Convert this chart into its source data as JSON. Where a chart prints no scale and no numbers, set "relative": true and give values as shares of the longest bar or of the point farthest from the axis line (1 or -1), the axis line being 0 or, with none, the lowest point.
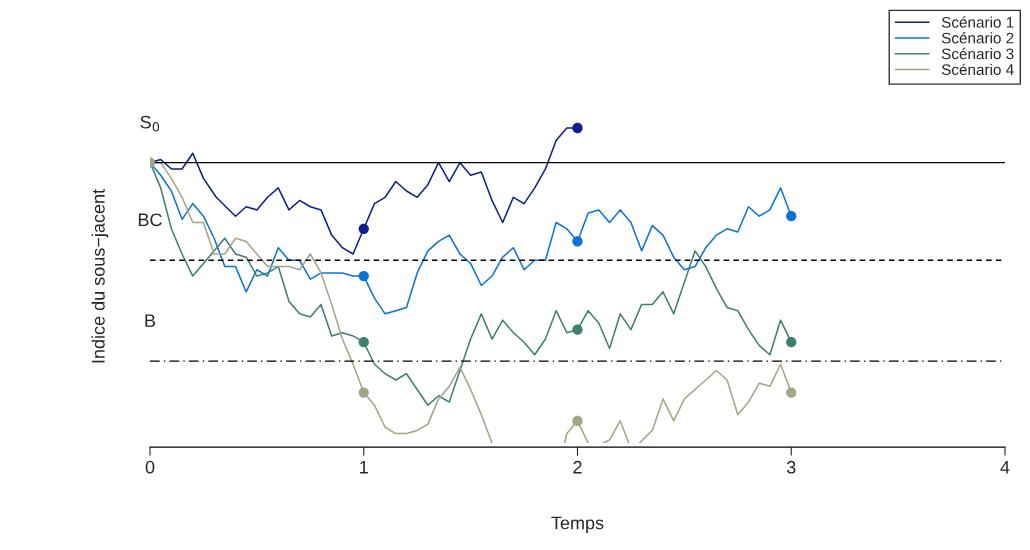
{
  "chart_data": {
    "type": "line",
    "relative": true,
    "xlabel": "Temps",
    "ylabel": "Indice du sous−jacent",
    "xlim": [
      0,
      4
    ],
    "xticks": [
      0,
      1,
      2,
      3,
      4
    ],
    "tick_labels": "x",
    "legend": "top right",
    "line_style": "solid",
    "series": [
      {
        "name": "Scénario 1",
        "color": "#0d1f8c",
        "x": [
          0,
          0.05,
          0.1,
          0.15,
          0.2,
          0.25,
          0.31,
          0.4,
          0.45,
          0.5,
          0.55,
          0.6,
          0.65,
          0.7,
          0.75,
          0.8,
          0.85,
          0.9,
          0.95,
          1.0,
          1.05,
          1.1,
          1.15,
          1.2,
          1.25,
          1.3,
          1.35,
          1.4,
          1.45,
          1.5,
          1.55,
          1.6,
          1.65,
          1.7,
          1.75,
          1.8,
          1.85,
          1.9,
          1.95,
          2.0
        ],
        "values": [
          0.89,
          0.9,
          0.87,
          0.87,
          0.92,
          0.84,
          0.78,
          0.72,
          0.75,
          0.74,
          0.78,
          0.81,
          0.74,
          0.77,
          0.75,
          0.74,
          0.66,
          0.62,
          0.6,
          0.68,
          0.76,
          0.78,
          0.83,
          0.8,
          0.78,
          0.82,
          0.89,
          0.83,
          0.89,
          0.85,
          0.86,
          0.77,
          0.7,
          0.78,
          0.76,
          0.81,
          0.87,
          0.96,
          1.0,
          1.0
        ]
      },
      {
        "name": "Scénario 2",
        "color": "#0a74d6",
        "x": [
          0,
          0.05,
          0.1,
          0.15,
          0.2,
          0.25,
          0.3,
          0.35,
          0.4,
          0.45,
          0.5,
          0.55,
          0.6,
          0.65,
          0.7,
          0.75,
          0.8,
          0.9,
          0.95,
          1.0,
          1.05,
          1.1,
          1.15,
          1.2,
          1.25,
          1.3,
          1.35,
          1.4,
          1.45,
          1.5,
          1.55,
          1.6,
          1.65,
          1.7,
          1.75,
          1.8,
          1.85,
          1.9,
          1.95,
          2.0,
          2.05,
          2.1,
          2.15,
          2.2,
          2.25,
          2.3,
          2.35,
          2.4,
          2.45,
          2.5,
          2.55,
          2.6,
          2.65,
          2.7,
          2.75,
          2.8,
          2.85,
          2.9,
          2.95,
          3.0
        ],
        "values": [
          0.89,
          0.85,
          0.8,
          0.71,
          0.76,
          0.72,
          0.65,
          0.56,
          0.56,
          0.48,
          0.55,
          0.53,
          0.62,
          0.58,
          0.58,
          0.52,
          0.54,
          0.54,
          0.53,
          0.53,
          0.46,
          0.41,
          0.42,
          0.43,
          0.54,
          0.61,
          0.64,
          0.66,
          0.6,
          0.57,
          0.5,
          0.53,
          0.59,
          0.62,
          0.55,
          0.58,
          0.58,
          0.7,
          0.68,
          0.64,
          0.73,
          0.74,
          0.7,
          0.74,
          0.7,
          0.61,
          0.69,
          0.66,
          0.59,
          0.55,
          0.56,
          0.62,
          0.66,
          0.68,
          0.67,
          0.75,
          0.72,
          0.74,
          0.81,
          0.72
        ]
      },
      {
        "name": "Scénario 3",
        "color": "#3c8070",
        "x": [
          0,
          0.05,
          0.1,
          0.15,
          0.2,
          0.25,
          0.3,
          0.35,
          0.4,
          0.45,
          0.5,
          0.55,
          0.6,
          0.65,
          0.7,
          0.75,
          0.8,
          0.85,
          0.9,
          0.95,
          1.0,
          1.05,
          1.1,
          1.15,
          1.2,
          1.25,
          1.3,
          1.35,
          1.4,
          1.45,
          1.5,
          1.55,
          1.6,
          1.65,
          1.7,
          1.75,
          1.8,
          1.85,
          1.9,
          1.95,
          2.0,
          2.05,
          2.1,
          2.15,
          2.2,
          2.25,
          2.3,
          2.35,
          2.4,
          2.45,
          2.5,
          2.55,
          2.6,
          2.65,
          2.7,
          2.75,
          2.8,
          2.85,
          2.9,
          2.95,
          3.0
        ],
        "values": [
          0.89,
          0.81,
          0.68,
          0.6,
          0.53,
          0.57,
          0.61,
          0.65,
          0.6,
          0.59,
          0.53,
          0.54,
          0.56,
          0.45,
          0.41,
          0.4,
          0.44,
          0.34,
          0.35,
          0.34,
          0.32,
          0.25,
          0.22,
          0.2,
          0.22,
          0.17,
          0.12,
          0.15,
          0.13,
          0.23,
          0.33,
          0.41,
          0.33,
          0.39,
          0.35,
          0.32,
          0.28,
          0.33,
          0.42,
          0.35,
          0.36,
          0.42,
          0.38,
          0.3,
          0.41,
          0.36,
          0.44,
          0.44,
          0.48,
          0.41,
          0.51,
          0.61,
          0.56,
          0.49,
          0.43,
          0.42,
          0.36,
          0.31,
          0.28,
          0.39,
          0.32
        ]
      },
      {
        "name": "Scénario 4",
        "color": "#a3a584",
        "x": [
          0,
          0.05,
          0.1,
          0.15,
          0.2,
          0.25,
          0.3,
          0.35,
          0.4,
          0.45,
          0.5,
          0.55,
          0.6,
          0.65,
          0.7,
          0.75,
          0.8,
          0.85,
          0.9,
          0.95,
          1.0,
          1.05,
          1.1,
          1.15,
          1.2,
          1.25,
          1.3,
          1.35,
          1.4,
          1.45,
          1.5,
          1.55,
          1.6,
          1.75,
          1.94,
          1.95,
          2.0,
          2.05,
          2.08,
          2.12,
          2.15,
          2.2,
          2.24,
          2.26,
          2.29,
          2.35,
          2.4,
          2.45,
          2.5,
          2.55,
          2.6,
          2.65,
          2.7,
          2.75,
          2.8,
          2.85,
          2.9,
          2.95,
          3.0
        ],
        "values": [
          0.89,
          0.89,
          0.84,
          0.78,
          0.7,
          0.7,
          0.6,
          0.6,
          0.65,
          0.64,
          0.6,
          0.56,
          0.56,
          0.56,
          0.55,
          0.6,
          0.54,
          0.44,
          0.33,
          0.25,
          0.16,
          0.12,
          0.05,
          0.03,
          0.03,
          0.04,
          0.06,
          0.14,
          0.18,
          0.24,
          0.17,
          0.09,
          0,
          null,
          0,
          0.03,
          0.07,
          0,
          null,
          0,
          0.01,
          0.07,
          0,
          null,
          0,
          0.04,
          0.14,
          0.07,
          0.14,
          0.17,
          0.2,
          0.23,
          0.2,
          0.09,
          0.13,
          0.19,
          0.18,
          0.25,
          0.16
        ]
      },
      {
        "type": "scatter",
        "marker": "circle",
        "color": "#0d1f8c",
        "x": [
          1,
          2
        ],
        "values": [
          0.68,
          1.0
        ]
      },
      {
        "type": "scatter",
        "marker": "circle",
        "color": "#0a74d6",
        "x": [
          1,
          2,
          3
        ],
        "values": [
          0.53,
          0.64,
          0.72
        ]
      },
      {
        "type": "scatter",
        "marker": "circle",
        "color": "#3c8070",
        "x": [
          1,
          2,
          3
        ],
        "values": [
          0.32,
          0.36,
          0.32
        ]
      },
      {
        "type": "scatter",
        "marker": "circle",
        "color": "#a3a584",
        "x": [
          0,
          1,
          2,
          3
        ],
        "values": [
          0.89,
          0.16,
          0.07,
          0.16
        ]
      }
    ],
    "ref_lines": [
      {
        "axis": "y",
        "value": 0.89,
        "label": "S$_{0}$",
        "color": "#000000",
        "line_style": "solid"
      },
      {
        "axis": "y",
        "value": 0.58,
        "label": "BC",
        "color": "#000000",
        "line_style": "dashed"
      },
      {
        "axis": "y",
        "value": 0.26,
        "label": "B",
        "color": "#000000",
        "line_style": "dashdot"
      }
    ]
  }
}
